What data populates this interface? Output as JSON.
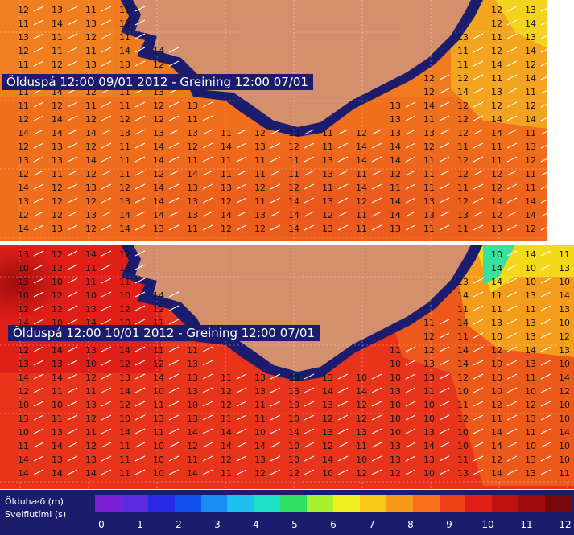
{
  "panels": [
    {
      "title": "Ölduspá 12:00 09/01 2012 - Greining 12:00 07/01",
      "values": [
        "11",
        "12",
        "13",
        "14"
      ]
    },
    {
      "title": "Ölduspá 12:00 10/01 2012 - Greining 12:00 07/01",
      "values": [
        "10",
        "11",
        "12",
        "13",
        "14"
      ]
    }
  ],
  "legend": {
    "height_label": "Ölduhæð (m)",
    "period_label": "Sveiflutími (s)",
    "ticks": [
      "0",
      "1",
      "2",
      "3",
      "4",
      "5",
      "6",
      "7",
      "8",
      "9",
      "10",
      "11",
      "12"
    ],
    "colors": [
      "#7a1fd6",
      "#5a2ae0",
      "#2a2ae6",
      "#1450f0",
      "#1a8cf5",
      "#1ec0f0",
      "#1ee0c8",
      "#30e060",
      "#a8f030",
      "#f0f020",
      "#f8c818",
      "#f89a18",
      "#f87018",
      "#f04018",
      "#e02018",
      "#c01010",
      "#a00c0c",
      "#7a0808"
    ]
  },
  "colors": {
    "sea_dark": "#1c1c6e",
    "land": "#d4906c",
    "orange": "#f07a1e",
    "red": "#e8461c",
    "yellow": "#f4c81c"
  }
}
